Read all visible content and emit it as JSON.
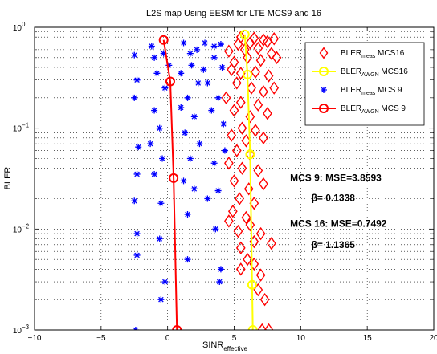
{
  "chart_data": {
    "type": "scatter",
    "title": "L2S map Using EESM for LTE MCS9 and 16",
    "xlabel": {
      "main": "SINR",
      "sub": "effective"
    },
    "ylabel": "BLER",
    "xlim": [
      -10,
      20
    ],
    "ylim": [
      0.001,
      1
    ],
    "yscale": "log",
    "grid": true,
    "x_ticks": [
      "−10",
      "−5",
      "0",
      "5",
      "10",
      "15",
      "20"
    ],
    "x_tick_values": [
      -10,
      -5,
      0,
      5,
      10,
      15,
      20
    ],
    "y_ticks": [
      {
        "base": "10",
        "exp": "−3",
        "value": 0.001
      },
      {
        "base": "10",
        "exp": "−2",
        "value": 0.01
      },
      {
        "base": "10",
        "exp": "−1",
        "value": 0.1
      },
      {
        "base": "10",
        "exp": "0",
        "value": 1
      }
    ],
    "legend_position": "top-right",
    "legend": [
      {
        "main": "BLER",
        "sub": "meas",
        "suffix": " MCS16"
      },
      {
        "main": "BLER",
        "sub": "AWGN",
        "suffix": " MCS16"
      },
      {
        "main": "BLER",
        "sub": "meas",
        "suffix": " MCS 9"
      },
      {
        "main": "BLER",
        "sub": "AWGN",
        "suffix": " MCS 9"
      }
    ],
    "annotations": [
      {
        "text": "MCS 9: MSE=3.8593",
        "x": 9.2,
        "y": 0.03
      },
      {
        "text": "β= 0.1338",
        "x": 10.8,
        "y": 0.019
      },
      {
        "text": "MCS 16: MSE=0.7492",
        "x": 9.2,
        "y": 0.0105
      },
      {
        "text": "β= 1.1365",
        "x": 10.8,
        "y": 0.0065
      }
    ],
    "series": [
      {
        "name": "BLER_meas MCS16",
        "marker": "diamond",
        "color": "#ff0000",
        "points": [
          [
            5.5,
            0.8
          ],
          [
            6.5,
            0.78
          ],
          [
            7.2,
            0.75
          ],
          [
            8.0,
            0.77
          ],
          [
            5.3,
            0.68
          ],
          [
            6.2,
            0.7
          ],
          [
            7.5,
            0.72
          ],
          [
            4.6,
            0.58
          ],
          [
            5.8,
            0.6
          ],
          [
            6.8,
            0.62
          ],
          [
            7.8,
            0.55
          ],
          [
            5.0,
            0.45
          ],
          [
            6.0,
            0.5
          ],
          [
            7.0,
            0.47
          ],
          [
            8.2,
            0.5
          ],
          [
            4.8,
            0.38
          ],
          [
            5.5,
            0.35
          ],
          [
            6.6,
            0.36
          ],
          [
            7.6,
            0.33
          ],
          [
            5.2,
            0.28
          ],
          [
            6.3,
            0.25
          ],
          [
            7.2,
            0.23
          ],
          [
            8.0,
            0.25
          ],
          [
            4.4,
            0.2
          ],
          [
            5.5,
            0.18
          ],
          [
            6.8,
            0.17
          ],
          [
            5.0,
            0.15
          ],
          [
            6.2,
            0.13
          ],
          [
            7.5,
            0.14
          ],
          [
            5.6,
            0.1
          ],
          [
            6.6,
            0.095
          ],
          [
            4.8,
            0.085
          ],
          [
            5.9,
            0.075
          ],
          [
            7.2,
            0.08
          ],
          [
            5.2,
            0.06
          ],
          [
            6.2,
            0.055
          ],
          [
            4.6,
            0.045
          ],
          [
            5.6,
            0.04
          ],
          [
            6.8,
            0.038
          ],
          [
            5.0,
            0.03
          ],
          [
            6.1,
            0.025
          ],
          [
            7.2,
            0.028
          ],
          [
            5.4,
            0.02
          ],
          [
            6.5,
            0.018
          ],
          [
            4.9,
            0.015
          ],
          [
            5.9,
            0.013
          ],
          [
            4.6,
            0.012
          ],
          [
            6.2,
            0.011
          ],
          [
            5.3,
            0.0095
          ],
          [
            7.0,
            0.009
          ],
          [
            6.5,
            0.0075
          ],
          [
            7.8,
            0.0072
          ],
          [
            5.5,
            0.0065
          ],
          [
            6.0,
            0.005
          ],
          [
            6.5,
            0.0045
          ],
          [
            5.5,
            0.004
          ],
          [
            7.0,
            0.0035
          ],
          [
            6.8,
            0.0025
          ],
          [
            7.3,
            0.002
          ],
          [
            7.1,
            0.001
          ],
          [
            7.6,
            0.001
          ]
        ]
      },
      {
        "name": "BLER_AWGN MCS16",
        "marker": "circle",
        "color": "#ffff00",
        "points": [
          [
            5.8,
            0.85
          ],
          [
            6.0,
            0.34
          ],
          [
            6.2,
            0.055
          ],
          [
            6.35,
            0.0028
          ],
          [
            6.4,
            0.001
          ]
        ]
      },
      {
        "name": "BLER_meas MCS 9",
        "marker": "asterisk",
        "color": "#0000ff",
        "points": [
          [
            -2.5,
            0.53
          ],
          [
            -2.3,
            0.3
          ],
          [
            -2.5,
            0.2
          ],
          [
            -2.2,
            0.065
          ],
          [
            -2.3,
            0.035
          ],
          [
            -2.5,
            0.019
          ],
          [
            -2.3,
            0.009
          ],
          [
            -2.3,
            0.0055
          ],
          [
            -2.4,
            0.001
          ],
          [
            -1.2,
            0.65
          ],
          [
            -1.0,
            0.5
          ],
          [
            -0.8,
            0.35
          ],
          [
            -0.3,
            0.55
          ],
          [
            0.1,
            0.42
          ],
          [
            -0.2,
            0.25
          ],
          [
            -1.0,
            0.15
          ],
          [
            -0.6,
            0.1
          ],
          [
            -1.3,
            0.07
          ],
          [
            -0.4,
            0.05
          ],
          [
            -1.0,
            0.035
          ],
          [
            -0.5,
            0.018
          ],
          [
            -0.6,
            0.008
          ],
          [
            -0.2,
            0.003
          ],
          [
            -0.5,
            0.002
          ],
          [
            1.2,
            0.7
          ],
          [
            1.7,
            0.55
          ],
          [
            2.2,
            0.6
          ],
          [
            1.8,
            0.42
          ],
          [
            1.0,
            0.35
          ],
          [
            2.3,
            0.28
          ],
          [
            1.5,
            0.2
          ],
          [
            1.0,
            0.16
          ],
          [
            2.0,
            0.13
          ],
          [
            1.3,
            0.09
          ],
          [
            2.4,
            0.07
          ],
          [
            1.7,
            0.05
          ],
          [
            1.2,
            0.03
          ],
          [
            2.0,
            0.025
          ],
          [
            1.5,
            0.014
          ],
          [
            1.5,
            0.005
          ],
          [
            2.8,
            0.7
          ],
          [
            3.5,
            0.65
          ],
          [
            4.0,
            0.68
          ],
          [
            3.5,
            0.5
          ],
          [
            4.1,
            0.4
          ],
          [
            2.7,
            0.38
          ],
          [
            3.0,
            0.28
          ],
          [
            3.8,
            0.2
          ],
          [
            3.3,
            0.15
          ],
          [
            4.2,
            0.11
          ],
          [
            4.3,
            0.06
          ],
          [
            3.5,
            0.045
          ],
          [
            3.8,
            0.024
          ],
          [
            3.0,
            0.02
          ],
          [
            3.6,
            0.01
          ],
          [
            4.0,
            0.004
          ],
          [
            3.9,
            0.003
          ]
        ]
      },
      {
        "name": "BLER_AWGN MCS 9",
        "marker": "circle",
        "color": "#ff0000",
        "points": [
          [
            -0.3,
            0.75
          ],
          [
            0.2,
            0.29
          ],
          [
            0.45,
            0.032
          ],
          [
            0.7,
            0.001
          ]
        ]
      }
    ]
  }
}
